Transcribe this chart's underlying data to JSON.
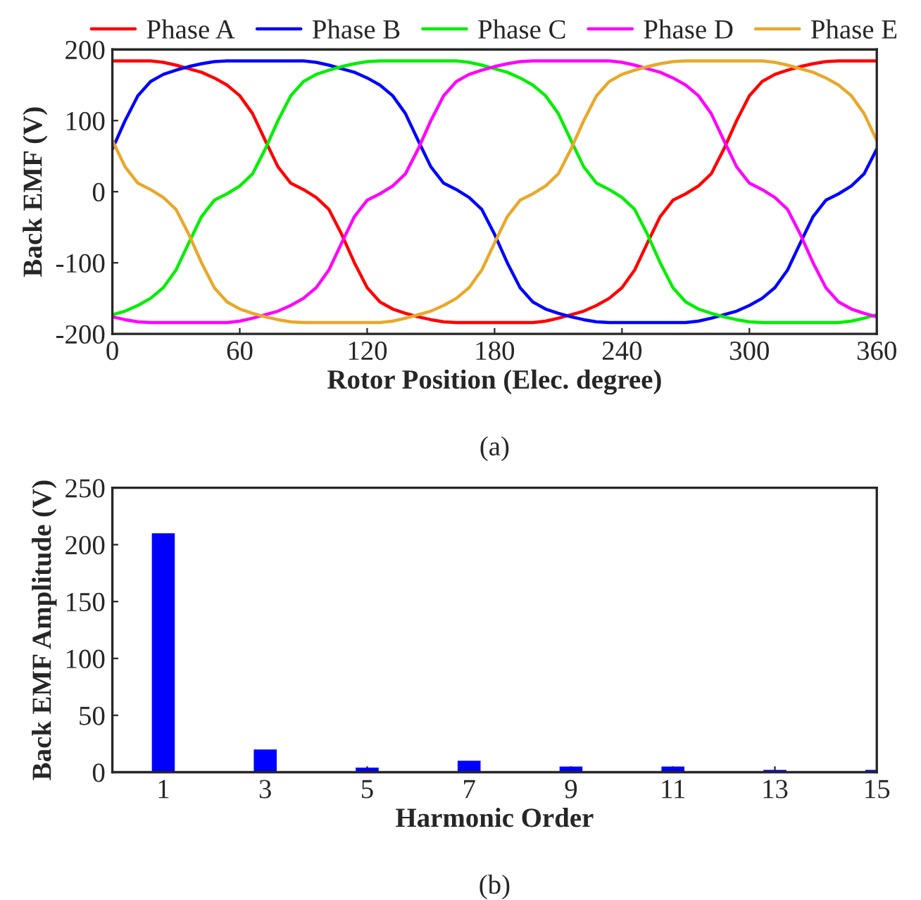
{
  "chart_data": [
    {
      "type": "line",
      "xlabel": "Rotor Position (Elec. degree)",
      "ylabel": "Back EMF (V)",
      "annotations": [
        "(a)"
      ],
      "x": [
        0,
        6,
        12,
        18,
        24,
        30,
        36,
        42,
        48,
        54,
        60,
        66,
        72,
        78,
        84,
        90,
        96,
        102,
        108,
        114,
        120,
        126,
        132,
        138,
        144,
        150,
        156,
        162,
        168,
        174,
        180,
        186,
        192,
        198,
        204,
        210,
        216,
        222,
        228,
        234,
        240,
        246,
        252,
        258,
        264,
        270,
        276,
        282,
        288,
        294,
        300,
        306,
        312,
        318,
        324,
        330,
        336,
        342,
        348,
        354,
        360
      ],
      "xlim": [
        0,
        360
      ],
      "xticks": [
        0,
        60,
        120,
        180,
        240,
        300,
        360
      ],
      "ylim": [
        -200,
        200
      ],
      "yticks": [
        -200,
        -100,
        0,
        100,
        200
      ],
      "legend": "top",
      "grid": false,
      "line_style": "solid",
      "series": [
        {
          "name": "Phase A",
          "color": "#ff0000",
          "values": [
            184,
            184,
            184,
            184,
            182,
            178,
            173,
            168,
            160,
            150,
            135,
            110,
            72,
            35,
            12,
            3,
            -8,
            -25,
            -60,
            -100,
            -135,
            -155,
            -165,
            -171,
            -176,
            -180,
            -183,
            -184,
            -184,
            -184,
            -184,
            -184,
            -184,
            -184,
            -182,
            -178,
            -173,
            -168,
            -160,
            -150,
            -135,
            -110,
            -72,
            -35,
            -12,
            -3,
            8,
            25,
            60,
            100,
            135,
            155,
            165,
            171,
            176,
            180,
            183,
            184,
            184,
            184,
            184
          ]
        },
        {
          "name": "Phase B",
          "color": "#0000ff",
          "values": [
            60,
            100,
            135,
            155,
            165,
            171,
            176,
            180,
            183,
            184,
            184,
            184,
            184,
            184,
            184,
            184,
            182,
            178,
            173,
            168,
            160,
            150,
            135,
            110,
            72,
            35,
            12,
            3,
            -8,
            -25,
            -60,
            -100,
            -135,
            -155,
            -165,
            -171,
            -176,
            -180,
            -183,
            -184,
            -184,
            -184,
            -184,
            -184,
            -184,
            -184,
            -182,
            -178,
            -173,
            -168,
            -160,
            -150,
            -135,
            -110,
            -72,
            -35,
            -12,
            -3,
            8,
            25,
            60
          ]
        },
        {
          "name": "Phase C",
          "color": "#00ee00",
          "values": [
            -173,
            -168,
            -160,
            -150,
            -135,
            -110,
            -72,
            -35,
            -12,
            -3,
            8,
            25,
            60,
            100,
            135,
            155,
            165,
            171,
            176,
            180,
            183,
            184,
            184,
            184,
            184,
            184,
            184,
            184,
            182,
            178,
            173,
            168,
            160,
            150,
            135,
            110,
            72,
            35,
            12,
            3,
            -8,
            -25,
            -60,
            -100,
            -135,
            -155,
            -165,
            -171,
            -176,
            -180,
            -183,
            -184,
            -184,
            -184,
            -184,
            -184,
            -184,
            -184,
            -182,
            -178,
            -173
          ]
        },
        {
          "name": "Phase D",
          "color": "#ff00ff",
          "values": [
            -176,
            -180,
            -183,
            -184,
            -184,
            -184,
            -184,
            -184,
            -184,
            -184,
            -182,
            -178,
            -173,
            -168,
            -160,
            -150,
            -135,
            -110,
            -72,
            -35,
            -12,
            -3,
            8,
            25,
            60,
            100,
            135,
            155,
            165,
            171,
            176,
            180,
            183,
            184,
            184,
            184,
            184,
            184,
            184,
            184,
            182,
            178,
            173,
            168,
            160,
            150,
            135,
            110,
            72,
            35,
            12,
            3,
            -8,
            -25,
            -60,
            -100,
            -135,
            -155,
            -165,
            -171,
            -176
          ]
        },
        {
          "name": "Phase E",
          "color": "#e8a82a",
          "values": [
            72,
            35,
            12,
            3,
            -8,
            -25,
            -60,
            -100,
            -135,
            -155,
            -165,
            -171,
            -176,
            -180,
            -183,
            -184,
            -184,
            -184,
            -184,
            -184,
            -184,
            -184,
            -182,
            -178,
            -173,
            -168,
            -160,
            -150,
            -135,
            -110,
            -72,
            -35,
            -12,
            -3,
            8,
            25,
            60,
            100,
            135,
            155,
            165,
            171,
            176,
            180,
            183,
            184,
            184,
            184,
            184,
            184,
            184,
            184,
            182,
            178,
            173,
            168,
            160,
            150,
            135,
            110,
            72
          ]
        }
      ]
    },
    {
      "type": "bar",
      "xlabel": "Harmonic Order",
      "ylabel": "Back EMF Amplitude (V)",
      "annotations": [
        "(b)"
      ],
      "x": [
        1,
        3,
        5,
        7,
        9,
        11,
        13,
        15
      ],
      "values": [
        210,
        20,
        4,
        10,
        5,
        5,
        2,
        2
      ],
      "color": "#0000ff",
      "xlim": [
        0,
        15
      ],
      "xticks": [
        1,
        3,
        5,
        7,
        9,
        11,
        13,
        15
      ],
      "ylim": [
        0,
        250
      ],
      "yticks": [
        0,
        50,
        100,
        150,
        200,
        250
      ],
      "grid": false,
      "legend": false
    }
  ]
}
